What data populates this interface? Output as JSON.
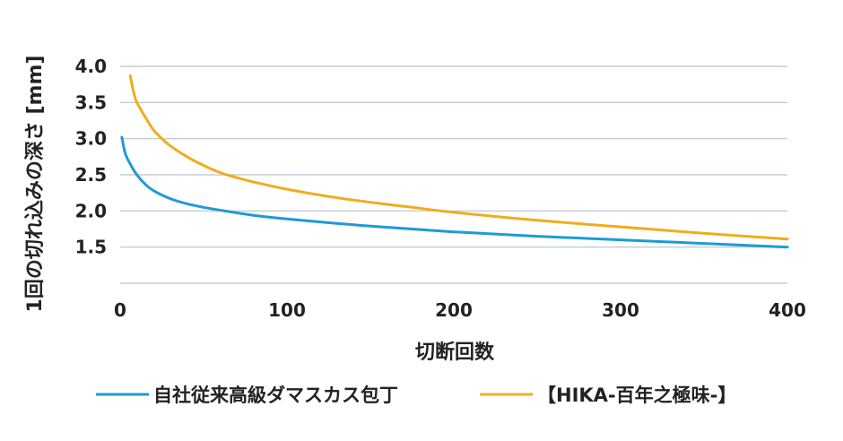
{
  "chart_data": {
    "type": "line",
    "title": "",
    "xlabel": "切断回数",
    "ylabel": "1回の切れ込みの深さ [mm]",
    "xlim": [
      0,
      400
    ],
    "ylim": [
      1.0,
      4.0
    ],
    "x_ticks": [
      "0",
      "100",
      "200",
      "300",
      "400"
    ],
    "y_ticks": [
      "1.5",
      "2.0",
      "2.5",
      "3.0",
      "3.5",
      "4.0"
    ],
    "grid": "horizontal",
    "legend_position": "bottom",
    "series": [
      {
        "name": "自社従来高級ダマスカス包丁",
        "color": "#1f9ad6",
        "points": [
          [
            1,
            3.02
          ],
          [
            3,
            2.8
          ],
          [
            6,
            2.65
          ],
          [
            10,
            2.5
          ],
          [
            15,
            2.37
          ],
          [
            20,
            2.28
          ],
          [
            30,
            2.17
          ],
          [
            40,
            2.1
          ],
          [
            50,
            2.05
          ],
          [
            60,
            2.01
          ],
          [
            80,
            1.94
          ],
          [
            100,
            1.89
          ],
          [
            150,
            1.79
          ],
          [
            200,
            1.71
          ],
          [
            250,
            1.65
          ],
          [
            300,
            1.6
          ],
          [
            350,
            1.55
          ],
          [
            400,
            1.5
          ]
        ]
      },
      {
        "name": "【HIKA-百年之極味-】",
        "color": "#f0ac1c",
        "points": [
          [
            6,
            3.87
          ],
          [
            8,
            3.65
          ],
          [
            10,
            3.5
          ],
          [
            15,
            3.3
          ],
          [
            20,
            3.12
          ],
          [
            25,
            3.0
          ],
          [
            30,
            2.9
          ],
          [
            40,
            2.75
          ],
          [
            50,
            2.63
          ],
          [
            60,
            2.53
          ],
          [
            70,
            2.46
          ],
          [
            80,
            2.4
          ],
          [
            100,
            2.3
          ],
          [
            125,
            2.2
          ],
          [
            150,
            2.12
          ],
          [
            175,
            2.05
          ],
          [
            200,
            1.98
          ],
          [
            250,
            1.87
          ],
          [
            300,
            1.78
          ],
          [
            350,
            1.69
          ],
          [
            400,
            1.61
          ]
        ]
      }
    ]
  }
}
